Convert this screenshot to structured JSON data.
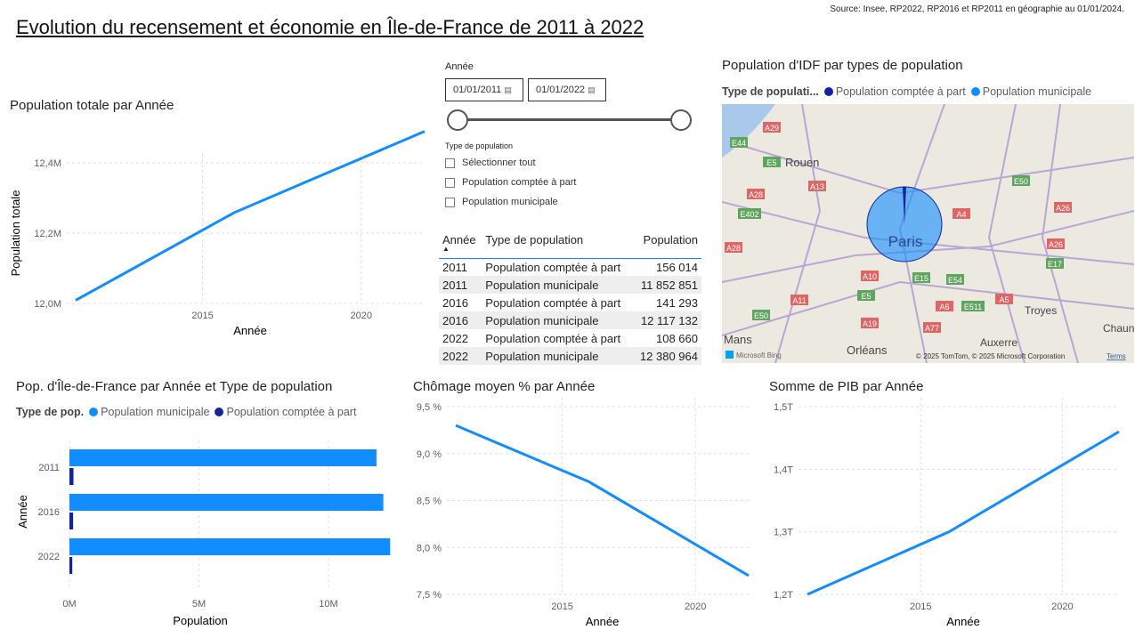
{
  "header": {
    "title": "Evolution du recensement et économie en Île-de-France de 2011 à 2022",
    "source": "Source: Insee, RP2022, RP2016 et RP2011 en géographie au 01/01/2024."
  },
  "colors": {
    "accent": "#118dff",
    "dark": "#12239e"
  },
  "pop_total": {
    "title": "Population totale par Année",
    "xlabel": "Année",
    "ylabel": "Population totale"
  },
  "slicer": {
    "label": "Année",
    "start": "01/01/2011",
    "end": "01/01/2022",
    "calendar_icon": "calendar-icon",
    "range": [
      2011,
      2022
    ]
  },
  "type_filter": {
    "label": "Type de population",
    "options": [
      "Sélectionner tout",
      "Population comptée à part",
      "Population municipale"
    ]
  },
  "table": {
    "headers": [
      "Année",
      "Type de population",
      "Population"
    ],
    "rows": [
      [
        "2011",
        "Population comptée à part",
        "156 014"
      ],
      [
        "2011",
        "Population municipale",
        "11 852 851"
      ],
      [
        "2016",
        "Population comptée à part",
        "141 293"
      ],
      [
        "2016",
        "Population municipale",
        "12 117 132"
      ],
      [
        "2022",
        "Population comptée à part",
        "108 660"
      ],
      [
        "2022",
        "Population municipale",
        "12 380 964"
      ]
    ]
  },
  "map": {
    "title": "Population d'IDF par types de population",
    "legend_title": "Type de populati...",
    "legend": [
      "Population comptée à part",
      "Population municipale"
    ],
    "labels": [
      "Rouen",
      "Paris",
      "Troyes",
      "Mans",
      "Orléans",
      "Chaun",
      "Auxerre"
    ],
    "roads": [
      "A29",
      "E44",
      "E5",
      "A13",
      "A28",
      "E402",
      "A28",
      "E50",
      "A4",
      "A26",
      "A26",
      "E17",
      "A10",
      "E15",
      "E54",
      "A11",
      "E5",
      "A6",
      "E511",
      "A5",
      "E50",
      "A19",
      "A77"
    ],
    "attribution": "© 2025 TomTom, © 2025 Microsoft Corporation",
    "terms": "Terms",
    "bing": "Microsoft Bing"
  },
  "bar": {
    "title": "Pop. d'Île-de-France par Année et Type de population",
    "legend_title": "Type de pop.",
    "legend": [
      "Population municipale",
      "Population comptée à part"
    ],
    "xlabel": "Population",
    "ylabel": "Année"
  },
  "chomage": {
    "title": "Chômage moyen % par Année",
    "xlabel": "Année"
  },
  "pib": {
    "title": "Somme de PIB par Année",
    "xlabel": "Année"
  },
  "chart_data": [
    {
      "type": "line",
      "title": "Population totale par Année",
      "xlabel": "Année",
      "ylabel": "Population totale",
      "x": [
        2011,
        2016,
        2022
      ],
      "values": [
        12008865,
        12258425,
        12489624
      ],
      "ylim": [
        12000000,
        12400000
      ],
      "yticks": [
        "12,0M",
        "12,2M",
        "12,4M"
      ],
      "xticks": [
        "2015",
        "2020"
      ],
      "grid": true
    },
    {
      "type": "bar",
      "orientation": "horizontal",
      "title": "Pop. d'Île-de-France par Année et Type de population",
      "categories": [
        "2011",
        "2016",
        "2022"
      ],
      "series": [
        {
          "name": "Population municipale",
          "values": [
            11852851,
            12117132,
            12380964
          ]
        },
        {
          "name": "Population comptée à part",
          "values": [
            156014,
            141293,
            108660
          ]
        }
      ],
      "xticks": [
        "0M",
        "5M",
        "10M"
      ],
      "xlabel": "Population",
      "ylabel": "Année",
      "grid": true
    },
    {
      "type": "line",
      "title": "Chômage moyen % par Année",
      "x": [
        2011,
        2016,
        2022
      ],
      "values": [
        9.3,
        8.7,
        7.7
      ],
      "ylim": [
        7.5,
        9.5
      ],
      "yticks": [
        "7,5 %",
        "8,0 %",
        "8,5 %",
        "9,0 %",
        "9,5 %"
      ],
      "xticks": [
        "2015",
        "2020"
      ],
      "xlabel": "Année",
      "grid": true
    },
    {
      "type": "line",
      "title": "Somme de PIB par Année",
      "x": [
        2011,
        2016,
        2022
      ],
      "values": [
        1.2,
        1.3,
        1.46
      ],
      "ylim": [
        1.2,
        1.5
      ],
      "yticks": [
        "1,2T",
        "1,3T",
        "1,4T",
        "1,5T"
      ],
      "xticks": [
        "2015",
        "2020"
      ],
      "xlabel": "Année",
      "grid": true
    },
    {
      "type": "pie",
      "title": "Population d'IDF par types de population",
      "categories": [
        "Population comptée à part",
        "Population municipale"
      ],
      "values": [
        405967,
        36350947
      ]
    }
  ]
}
